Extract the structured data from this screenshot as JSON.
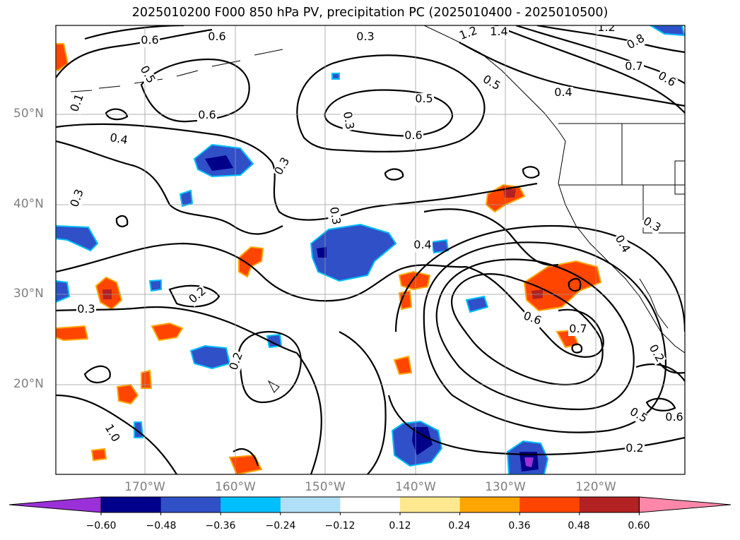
{
  "title": "2025010200 F000 850 hPa PV, precipitation PC (2025010400 - 2025010500)",
  "lat_labels": [
    "50°N",
    "40°N",
    "30°N",
    "20°N"
  ],
  "lon_labels": [
    "170°W",
    "160°W",
    "150°W",
    "140°W",
    "130°W",
    "120°W"
  ],
  "colorbar": {
    "colors": [
      "#9b30d8",
      "#00008b",
      "#3050c8",
      "#00bfff",
      "#b0e0f8",
      "#ffffff",
      "#ffe890",
      "#ffa500",
      "#ff4500",
      "#b22222",
      "#ff88aa"
    ],
    "tick_labels": [
      "−0.60",
      "−0.48",
      "−0.36",
      "−0.24",
      "−0.12",
      "0.12",
      "0.24",
      "0.36",
      "0.48",
      "0.60"
    ]
  },
  "contour_labels": [
    "0.6",
    "0.6",
    "0.3",
    "0.5",
    "0.1",
    "0.6",
    "0.4",
    "0.5",
    "0.6",
    "0.3",
    "0.3",
    "0.3",
    "0.4",
    "0.2",
    "0.3",
    "0.2",
    "1.0",
    "1.2",
    "1.4",
    "1.2",
    "0.8",
    "0.7",
    "0.6",
    "0.4",
    "0.5",
    "0.3",
    "0.4",
    "0.6",
    "0.7",
    "0.3",
    "0.2",
    "0.5",
    "0.6",
    "0.2"
  ]
}
